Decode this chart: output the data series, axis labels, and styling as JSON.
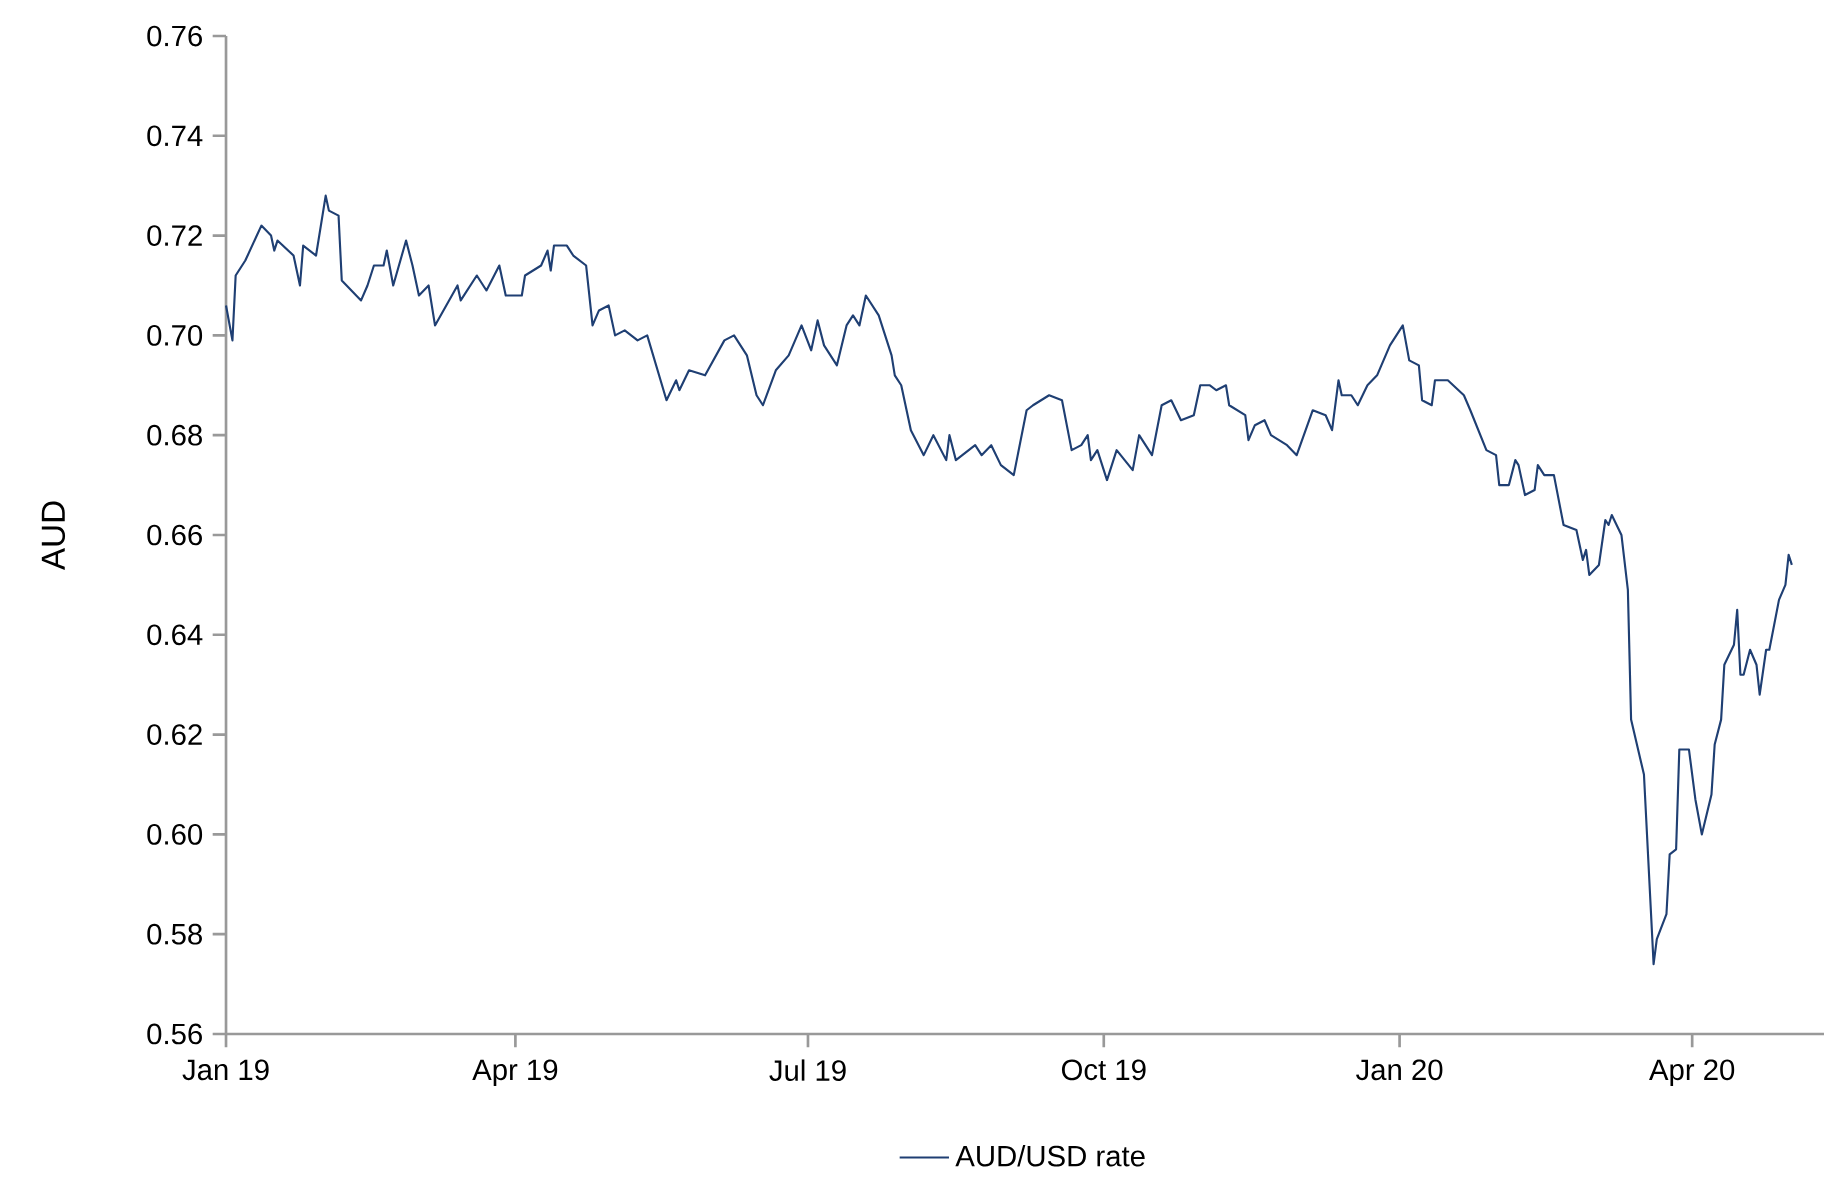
{
  "chart_data": {
    "type": "line",
    "ylabel": "AUD",
    "legend": "bottom",
    "marker": "none",
    "line_style": "solid",
    "xlim": [
      "2019-01-01",
      "2020-05-12"
    ],
    "xticks": [
      {
        "value": "2019-01-01",
        "label": "Jan 19"
      },
      {
        "value": "2019-04-01",
        "label": "Apr 19"
      },
      {
        "value": "2019-07-01",
        "label": "Jul 19"
      },
      {
        "value": "2019-10-01",
        "label": "Oct 19"
      },
      {
        "value": "2020-01-01",
        "label": "Jan 20"
      },
      {
        "value": "2020-04-01",
        "label": "Apr 20"
      }
    ],
    "ylim": [
      0.56,
      0.76
    ],
    "yticks": [
      {
        "value": 0.56,
        "label": "0.56"
      },
      {
        "value": 0.58,
        "label": "0.58"
      },
      {
        "value": 0.6,
        "label": "0.60"
      },
      {
        "value": 0.62,
        "label": "0.62"
      },
      {
        "value": 0.64,
        "label": "0.64"
      },
      {
        "value": 0.66,
        "label": "0.66"
      },
      {
        "value": 0.68,
        "label": "0.68"
      },
      {
        "value": 0.7,
        "label": "0.70"
      },
      {
        "value": 0.72,
        "label": "0.72"
      },
      {
        "value": 0.74,
        "label": "0.74"
      },
      {
        "value": 0.76,
        "label": "0.76"
      }
    ],
    "series": [
      {
        "name": "AUD/USD rate",
        "color": "#1f3f73",
        "x": [
          "2019-01-01",
          "2019-01-03",
          "2019-01-04",
          "2019-01-07",
          "2019-01-12",
          "2019-01-15",
          "2019-01-16",
          "2019-01-17",
          "2019-01-22",
          "2019-01-24",
          "2019-01-25",
          "2019-01-29",
          "2019-02-01",
          "2019-02-02",
          "2019-02-05",
          "2019-02-06",
          "2019-02-12",
          "2019-02-14",
          "2019-02-16",
          "2019-02-19",
          "2019-02-20",
          "2019-02-22",
          "2019-02-26",
          "2019-02-28",
          "2019-03-02",
          "2019-03-05",
          "2019-03-07",
          "2019-03-14",
          "2019-03-15",
          "2019-03-20",
          "2019-03-23",
          "2019-03-27",
          "2019-03-29",
          "2019-04-03",
          "2019-04-04",
          "2019-04-09",
          "2019-04-11",
          "2019-04-12",
          "2019-04-13",
          "2019-04-17",
          "2019-04-19",
          "2019-04-23",
          "2019-04-25",
          "2019-04-27",
          "2019-04-30",
          "2019-05-02",
          "2019-05-05",
          "2019-05-09",
          "2019-05-12",
          "2019-05-18",
          "2019-05-21",
          "2019-05-22",
          "2019-05-25",
          "2019-05-30",
          "2019-06-05",
          "2019-06-08",
          "2019-06-12",
          "2019-06-15",
          "2019-06-17",
          "2019-06-21",
          "2019-06-25",
          "2019-06-29",
          "2019-07-02",
          "2019-07-04",
          "2019-07-06",
          "2019-07-10",
          "2019-07-13",
          "2019-07-15",
          "2019-07-17",
          "2019-07-19",
          "2019-07-23",
          "2019-07-27",
          "2019-07-28",
          "2019-07-30",
          "2019-08-02",
          "2019-08-06",
          "2019-08-09",
          "2019-08-13",
          "2019-08-14",
          "2019-08-16",
          "2019-08-22",
          "2019-08-24",
          "2019-08-27",
          "2019-08-30",
          "2019-09-03",
          "2019-09-07",
          "2019-09-09",
          "2019-09-14",
          "2019-09-18",
          "2019-09-21",
          "2019-09-24",
          "2019-09-26",
          "2019-09-27",
          "2019-09-29",
          "2019-10-02",
          "2019-10-05",
          "2019-10-10",
          "2019-10-12",
          "2019-10-16",
          "2019-10-19",
          "2019-10-22",
          "2019-10-25",
          "2019-10-29",
          "2019-10-31",
          "2019-11-03",
          "2019-11-05",
          "2019-11-08",
          "2019-11-09",
          "2019-11-14",
          "2019-11-15",
          "2019-11-17",
          "2019-11-20",
          "2019-11-22",
          "2019-11-27",
          "2019-11-30",
          "2019-12-05",
          "2019-12-09",
          "2019-12-11",
          "2019-12-13",
          "2019-12-14",
          "2019-12-17",
          "2019-12-19",
          "2019-12-22",
          "2019-12-25",
          "2019-12-29",
          "2020-01-02",
          "2020-01-04",
          "2020-01-07",
          "2020-01-08",
          "2020-01-11",
          "2020-01-12",
          "2020-01-16",
          "2020-01-21",
          "2020-01-23",
          "2020-01-28",
          "2020-01-31",
          "2020-02-01",
          "2020-02-04",
          "2020-02-06",
          "2020-02-07",
          "2020-02-09",
          "2020-02-12",
          "2020-02-13",
          "2020-02-15",
          "2020-02-18",
          "2020-02-21",
          "2020-02-25",
          "2020-02-27",
          "2020-02-28",
          "2020-02-29",
          "2020-03-03",
          "2020-03-05",
          "2020-03-06",
          "2020-03-07",
          "2020-03-10",
          "2020-03-12",
          "2020-03-13",
          "2020-03-17",
          "2020-03-20",
          "2020-03-21",
          "2020-03-24",
          "2020-03-25",
          "2020-03-27",
          "2020-03-28",
          "2020-03-31",
          "2020-04-02",
          "2020-04-04",
          "2020-04-07",
          "2020-04-08",
          "2020-04-10",
          "2020-04-11",
          "2020-04-14",
          "2020-04-15",
          "2020-04-16",
          "2020-04-17",
          "2020-04-19",
          "2020-04-21",
          "2020-04-22",
          "2020-04-24",
          "2020-04-25",
          "2020-04-28",
          "2020-04-30",
          "2020-05-01",
          "2020-05-02"
        ],
        "values": [
          0.706,
          0.699,
          0.712,
          0.715,
          0.722,
          0.72,
          0.717,
          0.719,
          0.716,
          0.71,
          0.718,
          0.716,
          0.728,
          0.725,
          0.724,
          0.711,
          0.707,
          0.71,
          0.714,
          0.714,
          0.717,
          0.71,
          0.719,
          0.714,
          0.708,
          0.71,
          0.702,
          0.71,
          0.707,
          0.712,
          0.709,
          0.714,
          0.708,
          0.708,
          0.712,
          0.714,
          0.717,
          0.713,
          0.718,
          0.718,
          0.716,
          0.714,
          0.702,
          0.705,
          0.706,
          0.7,
          0.701,
          0.699,
          0.7,
          0.687,
          0.691,
          0.689,
          0.693,
          0.692,
          0.699,
          0.7,
          0.696,
          0.688,
          0.686,
          0.693,
          0.696,
          0.702,
          0.697,
          0.703,
          0.698,
          0.694,
          0.702,
          0.704,
          0.702,
          0.708,
          0.704,
          0.696,
          0.692,
          0.69,
          0.681,
          0.676,
          0.68,
          0.675,
          0.68,
          0.675,
          0.678,
          0.676,
          0.678,
          0.674,
          0.672,
          0.685,
          0.686,
          0.688,
          0.687,
          0.677,
          0.678,
          0.68,
          0.675,
          0.677,
          0.671,
          0.677,
          0.673,
          0.68,
          0.676,
          0.686,
          0.687,
          0.683,
          0.684,
          0.69,
          0.69,
          0.689,
          0.69,
          0.686,
          0.684,
          0.679,
          0.682,
          0.683,
          0.68,
          0.678,
          0.676,
          0.685,
          0.684,
          0.681,
          0.691,
          0.688,
          0.688,
          0.686,
          0.69,
          0.692,
          0.698,
          0.702,
          0.695,
          0.694,
          0.687,
          0.686,
          0.691,
          0.691,
          0.688,
          0.685,
          0.677,
          0.676,
          0.67,
          0.67,
          0.675,
          0.674,
          0.668,
          0.669,
          0.674,
          0.672,
          0.672,
          0.662,
          0.661,
          0.655,
          0.657,
          0.652,
          0.654,
          0.663,
          0.662,
          0.664,
          0.66,
          0.649,
          0.623,
          0.612,
          0.574,
          0.579,
          0.584,
          0.596,
          0.597,
          0.617,
          0.617,
          0.607,
          0.6,
          0.608,
          0.618,
          0.623,
          0.634,
          0.638,
          0.645,
          0.632,
          0.632,
          0.637,
          0.634,
          0.628,
          0.637,
          0.637,
          0.647,
          0.65,
          0.656,
          0.654
        ]
      }
    ]
  }
}
